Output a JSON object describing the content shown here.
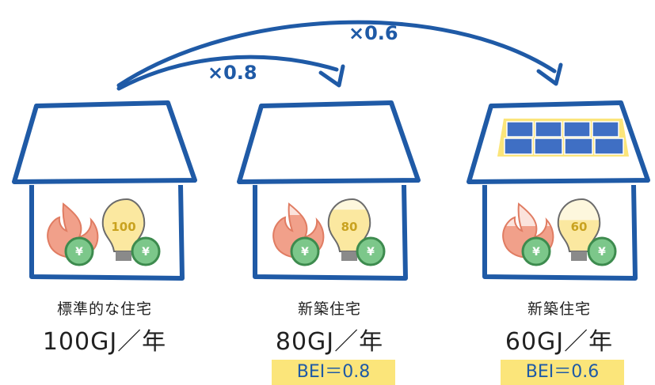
{
  "houses": [
    {
      "title": "標準的な住宅",
      "energy": "100GJ／年",
      "bulb_value": "100",
      "fill_fraction": 1.0,
      "bei": null,
      "solar_panels": false
    },
    {
      "title": "新築住宅",
      "energy": "80GJ／年",
      "bulb_value": "80",
      "fill_fraction": 0.8,
      "bei": "BEI＝0.8",
      "solar_panels": false
    },
    {
      "title": "新築住宅",
      "energy": "60GJ／年",
      "bulb_value": "60",
      "fill_fraction": 0.6,
      "bei": "BEI＝0.6",
      "solar_panels": true
    }
  ],
  "arrows": [
    {
      "label": "×0.8"
    },
    {
      "label": "×0.6"
    }
  ],
  "yen_symbol": "¥",
  "colors": {
    "outline": "#1f5aa6",
    "flame": "#f1a08a",
    "flame_light": "#fbe3dc",
    "bulb_fill": "#fbe8a0",
    "bulb_light": "#fdf7dd",
    "yen_coin": "#7cc78a",
    "bei_highlight": "#fbe57a",
    "solar_panel": "#3f6fc4"
  }
}
